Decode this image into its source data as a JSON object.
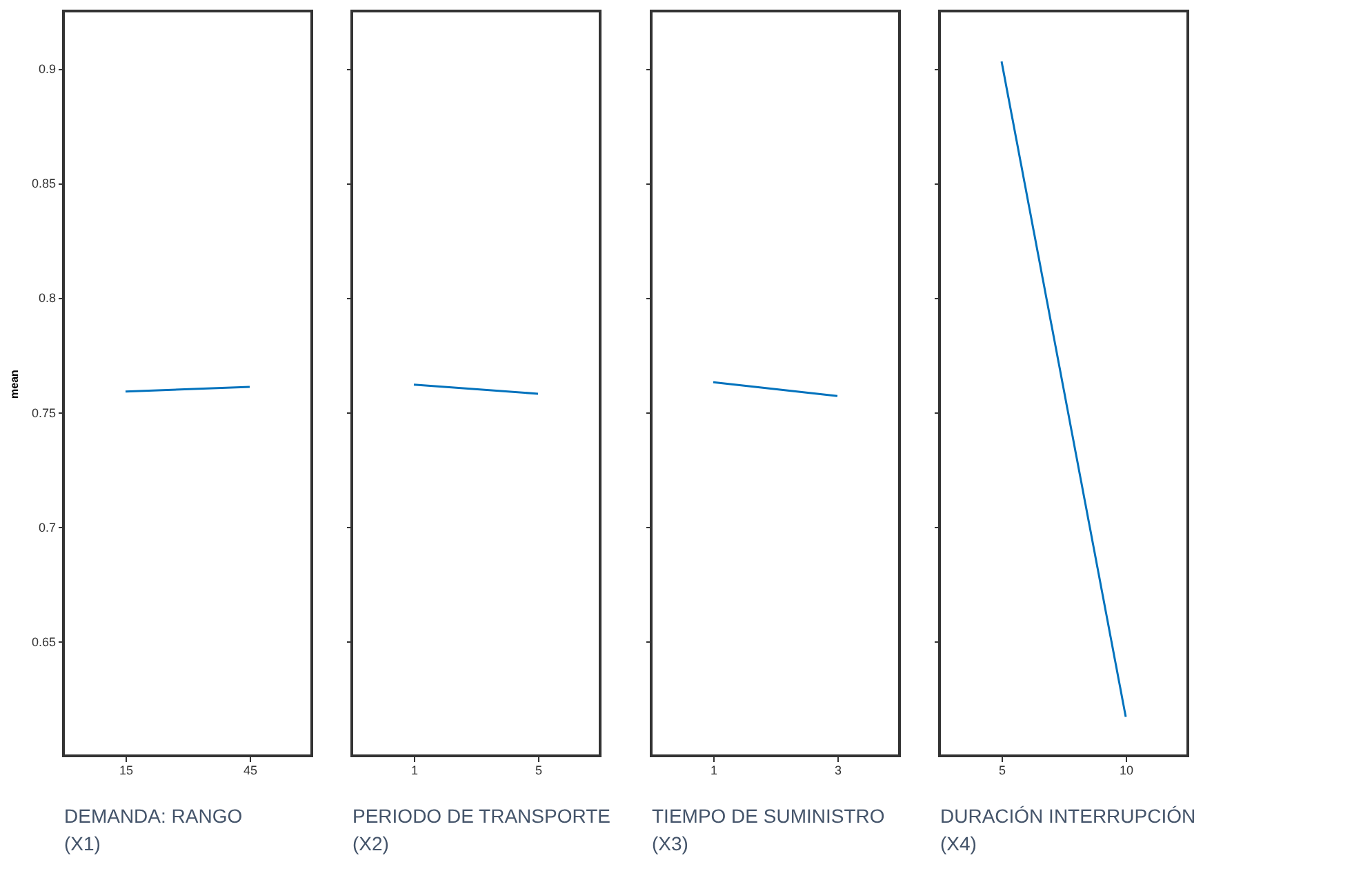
{
  "chart_data": [
    {
      "type": "line",
      "ylabel": "mean",
      "xlabel": "DEMANDA: RANGO\n(X1)",
      "x": [
        15,
        45
      ],
      "series": [
        {
          "color": "#0072bd",
          "values": [
            0.759,
            0.761
          ]
        }
      ],
      "xlim": [
        0,
        60
      ],
      "xticks": [
        15,
        45
      ],
      "ylim": [
        0.6,
        0.925
      ],
      "yticks": [
        0.65,
        0.7,
        0.75,
        0.8,
        0.85,
        0.9
      ],
      "grid": false,
      "marker": "none"
    },
    {
      "type": "line",
      "xlabel": "PERIODO DE TRANSPORTE\n(X2)",
      "x": [
        1,
        5
      ],
      "series": [
        {
          "color": "#0072bd",
          "values": [
            0.762,
            0.758
          ]
        }
      ],
      "xlim": [
        -1,
        7
      ],
      "xticks": [
        1,
        5
      ],
      "ylim": [
        0.6,
        0.925
      ],
      "yticks": [
        0.65,
        0.7,
        0.75,
        0.8,
        0.85,
        0.9
      ],
      "tick_labels": "x",
      "grid": false,
      "marker": "none"
    },
    {
      "type": "line",
      "xlabel": "TIEMPO DE SUMINISTRO\n(X3)",
      "x": [
        1,
        3
      ],
      "series": [
        {
          "color": "#0072bd",
          "values": [
            0.763,
            0.757
          ]
        }
      ],
      "xlim": [
        0,
        4
      ],
      "xticks": [
        1,
        3
      ],
      "ylim": [
        0.6,
        0.925
      ],
      "yticks": [
        0.65,
        0.7,
        0.75,
        0.8,
        0.85,
        0.9
      ],
      "tick_labels": "x",
      "grid": false,
      "marker": "none"
    },
    {
      "type": "line",
      "xlabel": "DURACIÓN INTERRUPCIÓN\n(X4)",
      "x": [
        5,
        10
      ],
      "series": [
        {
          "color": "#0072bd",
          "values": [
            0.903,
            0.617
          ]
        }
      ],
      "xlim": [
        2.5,
        12.5
      ],
      "xticks": [
        5,
        10
      ],
      "ylim": [
        0.6,
        0.925
      ],
      "yticks": [
        0.65,
        0.7,
        0.75,
        0.8,
        0.85,
        0.9
      ],
      "tick_labels": "x",
      "grid": false,
      "marker": "none"
    }
  ]
}
